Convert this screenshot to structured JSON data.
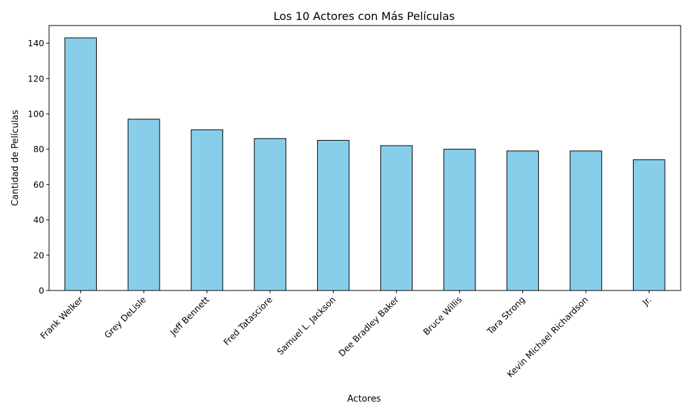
{
  "chart_data": {
    "type": "bar",
    "title": "Los 10 Actores con Más Películas",
    "xlabel": "Actores",
    "ylabel": "Cantidad de Películas",
    "categories": [
      "Frank Welker",
      "Grey DeLisle",
      "Jeff Bennett",
      "Fred Tatasciore",
      "Samuel L. Jackson",
      "Dee Bradley Baker",
      "Bruce Willis",
      "Tara Strong",
      "Kevin Michael Richardson",
      "Jr."
    ],
    "values": [
      143,
      97,
      91,
      86,
      85,
      82,
      80,
      79,
      79,
      74
    ],
    "ylim": [
      0,
      150
    ],
    "yticks": [
      0,
      20,
      40,
      60,
      80,
      100,
      120,
      140
    ],
    "grid": false,
    "legend": "none",
    "bar_color": "#87CEEB",
    "edge_color": "#000000"
  }
}
